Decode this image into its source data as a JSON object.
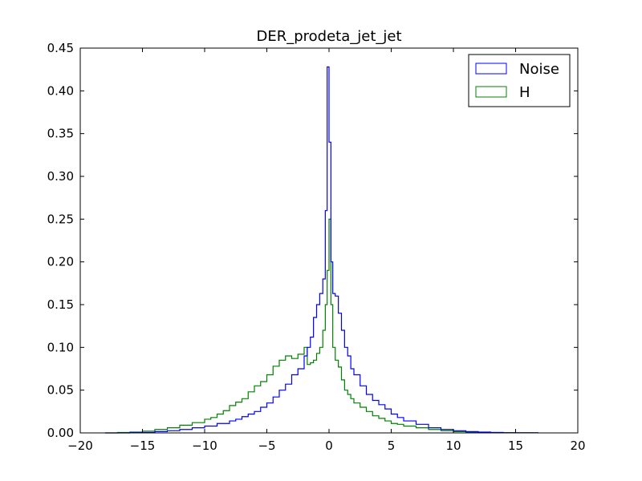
{
  "chart_data": {
    "type": "line",
    "title": "DER_prodeta_jet_jet",
    "xlabel": "",
    "ylabel": "",
    "xlim": [
      -20,
      20
    ],
    "ylim": [
      0,
      0.45
    ],
    "xticks": [
      -20,
      -15,
      -10,
      -5,
      0,
      5,
      10,
      15,
      20
    ],
    "yticks": [
      0.0,
      0.05,
      0.1,
      0.15,
      0.2,
      0.25,
      0.3,
      0.35,
      0.4,
      0.45
    ],
    "xtick_labels": [
      "−20",
      "−15",
      "−10",
      "−5",
      "0",
      "5",
      "10",
      "15",
      "20"
    ],
    "ytick_labels": [
      "0.00",
      "0.05",
      "0.10",
      "0.15",
      "0.20",
      "0.25",
      "0.30",
      "0.35",
      "0.40",
      "0.45"
    ],
    "grid": false,
    "legend_position": "top-right",
    "series": [
      {
        "name": "Noise",
        "color": "#0000ff",
        "style": "step",
        "x": [
          -18,
          -16,
          -14,
          -13,
          -12,
          -11,
          -10,
          -9,
          -8,
          -7.5,
          -7,
          -6.5,
          -6,
          -5.5,
          -5,
          -4.5,
          -4,
          -3.5,
          -3,
          -2.5,
          -2,
          -1.75,
          -1.5,
          -1.25,
          -1,
          -0.75,
          -0.5,
          -0.3,
          -0.15,
          0,
          0.15,
          0.3,
          0.5,
          0.75,
          1,
          1.25,
          1.5,
          1.75,
          2,
          2.5,
          3,
          3.5,
          4,
          4.5,
          5,
          5.5,
          6,
          7,
          8,
          9,
          10,
          11,
          12,
          13,
          14,
          15,
          16,
          16.8
        ],
        "y": [
          0.0,
          0.0005,
          0.0015,
          0.0025,
          0.004,
          0.006,
          0.008,
          0.011,
          0.014,
          0.016,
          0.019,
          0.022,
          0.025,
          0.03,
          0.035,
          0.042,
          0.05,
          0.057,
          0.068,
          0.075,
          0.09,
          0.1,
          0.112,
          0.135,
          0.15,
          0.163,
          0.18,
          0.26,
          0.428,
          0.34,
          0.2,
          0.163,
          0.16,
          0.14,
          0.12,
          0.1,
          0.09,
          0.075,
          0.068,
          0.055,
          0.045,
          0.038,
          0.033,
          0.028,
          0.022,
          0.018,
          0.014,
          0.01,
          0.006,
          0.004,
          0.0025,
          0.0015,
          0.001,
          0.0005,
          0.0003,
          0.0002,
          0.0001,
          0.0
        ]
      },
      {
        "name": "H",
        "color": "#008000",
        "style": "step",
        "x": [
          -18,
          -17,
          -16,
          -15,
          -14,
          -13,
          -12,
          -11,
          -10,
          -9.5,
          -9,
          -8.5,
          -8,
          -7.5,
          -7,
          -6.5,
          -6,
          -5.5,
          -5,
          -4.5,
          -4,
          -3.5,
          -3,
          -2.5,
          -2,
          -1.75,
          -1.5,
          -1.25,
          -1,
          -0.75,
          -0.5,
          -0.3,
          -0.15,
          0,
          0.15,
          0.3,
          0.5,
          0.75,
          1,
          1.25,
          1.5,
          1.75,
          2,
          2.5,
          3,
          3.5,
          4,
          4.5,
          5,
          5.5,
          6,
          7,
          8,
          9,
          10,
          11,
          12,
          14,
          16,
          16.8
        ],
        "y": [
          0.0,
          0.0005,
          0.001,
          0.002,
          0.004,
          0.006,
          0.009,
          0.012,
          0.016,
          0.018,
          0.022,
          0.026,
          0.032,
          0.036,
          0.04,
          0.048,
          0.055,
          0.06,
          0.068,
          0.078,
          0.085,
          0.09,
          0.087,
          0.092,
          0.1,
          0.08,
          0.082,
          0.085,
          0.093,
          0.1,
          0.12,
          0.15,
          0.19,
          0.25,
          0.15,
          0.1,
          0.085,
          0.077,
          0.062,
          0.05,
          0.045,
          0.04,
          0.035,
          0.03,
          0.025,
          0.02,
          0.017,
          0.014,
          0.011,
          0.01,
          0.008,
          0.006,
          0.004,
          0.0025,
          0.0015,
          0.001,
          0.0005,
          0.0002,
          0.0001,
          0.0
        ]
      }
    ]
  }
}
